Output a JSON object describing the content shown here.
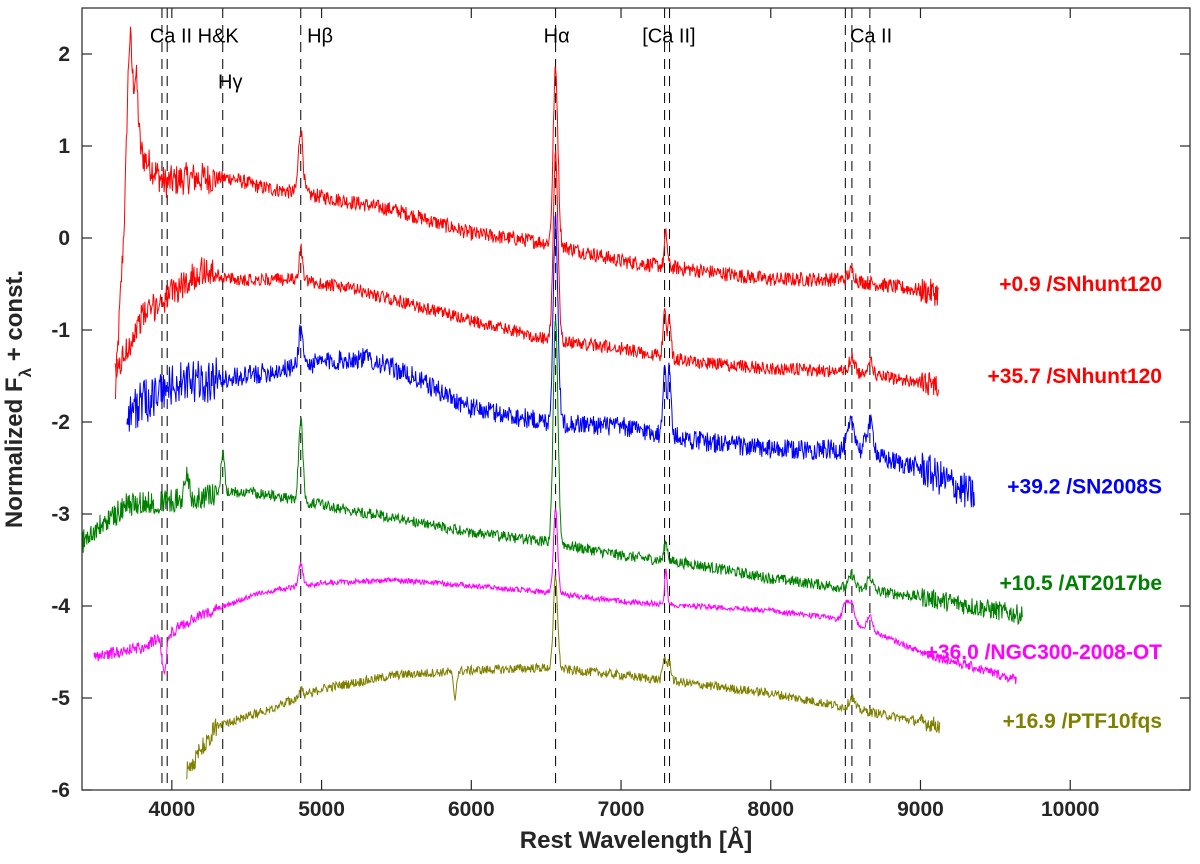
{
  "chart_data": {
    "type": "line",
    "title": "",
    "xlabel": "Rest Wavelength [Å]",
    "ylabel_main": "Normalized F",
    "ylabel_sub": "λ",
    "ylabel_rest": " + const.",
    "xlim": [
      3400,
      10800
    ],
    "ylim": [
      -6,
      2.5
    ],
    "x_ticks": [
      4000,
      5000,
      6000,
      7000,
      8000,
      9000,
      10000
    ],
    "y_ticks": [
      2,
      1,
      0,
      -1,
      -2,
      -3,
      -4,
      -5,
      -6
    ],
    "grid": false,
    "legend": "none",
    "line_markers": [
      {
        "label": "Ca II H&K",
        "label_y": 2.2,
        "label_x": 4150,
        "wavelengths": [
          3934,
          3969
        ]
      },
      {
        "label": "Hγ",
        "label_y": 1.7,
        "label_x": 4390,
        "wavelengths": [
          4340
        ]
      },
      {
        "label": "Hβ",
        "label_y": 2.2,
        "label_x": 4990,
        "wavelengths": [
          4861
        ]
      },
      {
        "label": "Hα",
        "label_y": 2.2,
        "label_x": 6570,
        "wavelengths": [
          6563
        ]
      },
      {
        "label": "[Ca II]",
        "label_y": 2.2,
        "label_x": 7320,
        "wavelengths": [
          7291,
          7324
        ]
      },
      {
        "label": "Ca II",
        "label_y": 2.2,
        "label_x": 8670,
        "wavelengths": [
          8498,
          8542,
          8662
        ]
      }
    ],
    "series": [
      {
        "name": "+0.9 /SNhunt120",
        "color": "#ff0000",
        "label_y": -0.5,
        "x_start": 3620,
        "x_end": 9120,
        "noise": 0.08,
        "continuum": [
          [
            3620,
            -1.8
          ],
          [
            3700,
            0.7
          ],
          [
            3800,
            0.9
          ],
          [
            3950,
            0.6
          ],
          [
            4100,
            0.65
          ],
          [
            4400,
            0.65
          ],
          [
            4600,
            0.55
          ],
          [
            5000,
            0.45
          ],
          [
            5500,
            0.3
          ],
          [
            6000,
            0.05
          ],
          [
            6500,
            -0.05
          ],
          [
            7000,
            -0.25
          ],
          [
            7500,
            -0.35
          ],
          [
            8000,
            -0.45
          ],
          [
            8500,
            -0.45
          ],
          [
            9120,
            -0.6
          ]
        ],
        "lines": [
          [
            3720,
            1.4,
            15
          ],
          [
            3760,
            0.9,
            15
          ],
          [
            4861,
            0.7,
            15
          ],
          [
            6563,
            1.9,
            16
          ],
          [
            7300,
            0.35,
            10
          ],
          [
            8540,
            0.1,
            20
          ]
        ]
      },
      {
        "name": "+35.7 /SNhunt120",
        "color": "#ff0000",
        "label_y": -1.5,
        "x_start": 3620,
        "x_end": 9120,
        "noise": 0.07,
        "continuum": [
          [
            3620,
            -1.5
          ],
          [
            3800,
            -0.85
          ],
          [
            4000,
            -0.6
          ],
          [
            4200,
            -0.35
          ],
          [
            4400,
            -0.45
          ],
          [
            4800,
            -0.45
          ],
          [
            5200,
            -0.55
          ],
          [
            6000,
            -0.9
          ],
          [
            6500,
            -1.1
          ],
          [
            7000,
            -1.2
          ],
          [
            7500,
            -1.35
          ],
          [
            8000,
            -1.42
          ],
          [
            8500,
            -1.45
          ],
          [
            9120,
            -1.6
          ]
        ],
        "lines": [
          [
            4861,
            0.35,
            12
          ],
          [
            6563,
            2.0,
            16
          ],
          [
            7291,
            0.55,
            10
          ],
          [
            7324,
            0.45,
            10
          ],
          [
            8542,
            0.15,
            20
          ],
          [
            8662,
            0.15,
            20
          ]
        ]
      },
      {
        "name": "+39.2 /SN2008S",
        "color": "#0000ff",
        "label_y": -2.7,
        "x_start": 3700,
        "x_end": 9360,
        "noise": 0.11,
        "continuum": [
          [
            3700,
            -1.9
          ],
          [
            4000,
            -1.6
          ],
          [
            4500,
            -1.5
          ],
          [
            5000,
            -1.35
          ],
          [
            5300,
            -1.3
          ],
          [
            5600,
            -1.5
          ],
          [
            6000,
            -1.85
          ],
          [
            6500,
            -2.0
          ],
          [
            7000,
            -2.05
          ],
          [
            7500,
            -2.2
          ],
          [
            8000,
            -2.3
          ],
          [
            8500,
            -2.3
          ],
          [
            9000,
            -2.5
          ],
          [
            9360,
            -2.8
          ]
        ],
        "lines": [
          [
            4861,
            0.4,
            15
          ],
          [
            6563,
            2.2,
            16
          ],
          [
            7291,
            0.85,
            10
          ],
          [
            7324,
            0.75,
            10
          ],
          [
            8542,
            0.3,
            25
          ],
          [
            8662,
            0.35,
            25
          ]
        ]
      },
      {
        "name": "+10.5 /AT2017be",
        "color": "#008000",
        "label_y": -3.75,
        "x_start": 3400,
        "x_end": 9680,
        "noise": 0.06,
        "continuum": [
          [
            3400,
            -3.3
          ],
          [
            3700,
            -2.9
          ],
          [
            4000,
            -2.85
          ],
          [
            4500,
            -2.75
          ],
          [
            5000,
            -2.9
          ],
          [
            5500,
            -3.05
          ],
          [
            6000,
            -3.2
          ],
          [
            6500,
            -3.3
          ],
          [
            7000,
            -3.45
          ],
          [
            7500,
            -3.55
          ],
          [
            8000,
            -3.7
          ],
          [
            8500,
            -3.8
          ],
          [
            9000,
            -3.9
          ],
          [
            9680,
            -4.1
          ]
        ],
        "lines": [
          [
            4101,
            0.3,
            12
          ],
          [
            4340,
            0.45,
            12
          ],
          [
            4861,
            0.9,
            14
          ],
          [
            6563,
            2.4,
            16
          ],
          [
            7300,
            0.2,
            12
          ],
          [
            8542,
            0.15,
            18
          ],
          [
            8662,
            0.15,
            18
          ]
        ]
      },
      {
        "name": "+36.0 /NGC300-2008-OT",
        "color": "#ff00ff",
        "label_y": -4.5,
        "x_start": 3480,
        "x_end": 9640,
        "noise": 0.03,
        "continuum": [
          [
            3480,
            -4.55
          ],
          [
            3800,
            -4.45
          ],
          [
            4200,
            -4.1
          ],
          [
            4600,
            -3.85
          ],
          [
            5000,
            -3.75
          ],
          [
            5500,
            -3.72
          ],
          [
            6000,
            -3.78
          ],
          [
            6500,
            -3.85
          ],
          [
            7000,
            -3.95
          ],
          [
            7500,
            -4.0
          ],
          [
            8000,
            -4.05
          ],
          [
            8500,
            -4.15
          ],
          [
            9000,
            -4.5
          ],
          [
            9640,
            -4.8
          ]
        ],
        "lines": [
          [
            3950,
            -0.4,
            15
          ],
          [
            4861,
            0.25,
            14
          ],
          [
            6563,
            0.9,
            14
          ],
          [
            7300,
            0.4,
            8
          ],
          [
            8500,
            0.2,
            18
          ],
          [
            8542,
            0.2,
            18
          ],
          [
            8662,
            0.15,
            18
          ]
        ]
      },
      {
        "name": "+16.9 /PTF10fqs",
        "color": "#808000",
        "label_y": -5.25,
        "x_start": 4100,
        "x_end": 9130,
        "noise": 0.05,
        "continuum": [
          [
            4100,
            -5.8
          ],
          [
            4300,
            -5.3
          ],
          [
            4600,
            -5.15
          ],
          [
            5000,
            -4.9
          ],
          [
            5500,
            -4.75
          ],
          [
            6000,
            -4.7
          ],
          [
            6500,
            -4.67
          ],
          [
            7000,
            -4.75
          ],
          [
            7500,
            -4.85
          ],
          [
            8000,
            -4.95
          ],
          [
            8500,
            -5.1
          ],
          [
            9130,
            -5.3
          ]
        ],
        "lines": [
          [
            4861,
            0.1,
            12
          ],
          [
            5890,
            -0.3,
            10
          ],
          [
            6563,
            1.0,
            14
          ],
          [
            7291,
            0.25,
            12
          ],
          [
            7324,
            0.2,
            12
          ],
          [
            8542,
            0.12,
            18
          ]
        ]
      }
    ]
  }
}
